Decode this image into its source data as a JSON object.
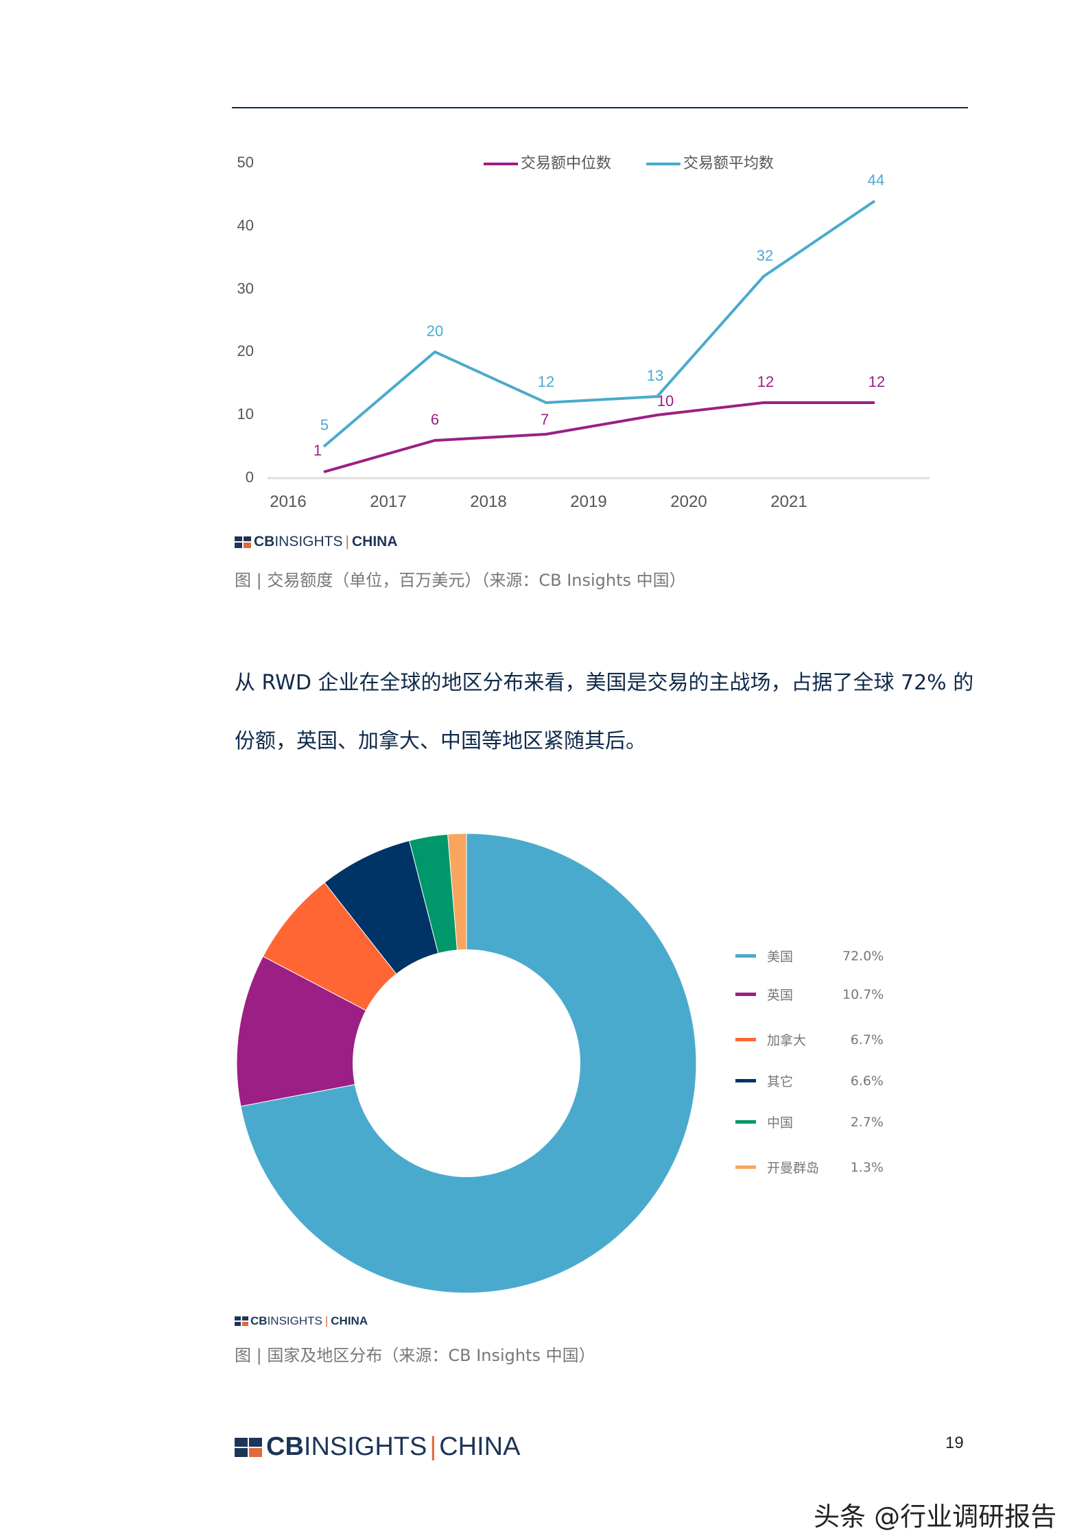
{
  "header": {
    "rule_color": "#0f2a4a"
  },
  "chart_data": [
    {
      "type": "line",
      "title": "",
      "x": [
        "2016",
        "2017",
        "2018",
        "2019",
        "2020",
        "2021"
      ],
      "x_ticks": [
        "2016",
        "2017",
        "2018",
        "2019",
        "2020",
        "2021"
      ],
      "y_ticks": [
        "0",
        "10",
        "20",
        "30",
        "40",
        "50"
      ],
      "ylim": [
        0,
        50
      ],
      "xlabel": "",
      "ylabel": "",
      "grid": false,
      "legend_position": "top",
      "series": [
        {
          "name": "交易额中位数",
          "color": "#9b1f84",
          "values": [
            1,
            6,
            7,
            10,
            12,
            12
          ],
          "labels": [
            "1",
            "6",
            "7",
            "10",
            "12",
            "12"
          ]
        },
        {
          "name": "交易额平均数",
          "color": "#4aaacd",
          "values": [
            5,
            20,
            12,
            13,
            32,
            44
          ],
          "labels": [
            "5",
            "20",
            "12",
            "13",
            "32",
            "44"
          ]
        }
      ]
    },
    {
      "type": "pie",
      "subtype": "donut",
      "title": "",
      "categories": [
        "美国",
        "英国",
        "加拿大",
        "其它",
        "中国",
        "开曼群岛"
      ],
      "values": [
        72.0,
        10.7,
        6.7,
        6.6,
        2.7,
        1.3
      ],
      "labels": [
        "72.0%",
        "10.7%",
        "6.7%",
        "6.6%",
        "2.7%",
        "1.3%"
      ],
      "colors": [
        "#4aaacd",
        "#9b1f84",
        "#ff6633",
        "#003366",
        "#00976a",
        "#f9a55e"
      ],
      "legend_position": "right"
    }
  ],
  "chart1": {
    "legend": [
      "交易额中位数",
      "交易额平均数"
    ],
    "logo": {
      "cb": "CB",
      "insights": "INSIGHTS",
      "sep": "|",
      "china": "CHINA"
    },
    "caption": "图 | 交易额度（单位，百万美元）（来源：CB Insights 中国）"
  },
  "paragraph": {
    "line1": "从 RWD 企业在全球的地区分布来看，美国是交易的主战场，占据了全球 72% 的",
    "line2": "份额，英国、加拿大、中国等地区紧随其后。"
  },
  "chart2": {
    "legend": [
      {
        "name": "美国",
        "pct": "72.0%",
        "color": "#4aaacd"
      },
      {
        "name": "英国",
        "pct": "10.7%",
        "color": "#9b1f84"
      },
      {
        "name": "加拿大",
        "pct": "6.7%",
        "color": "#ff6633"
      },
      {
        "name": "其它",
        "pct": "6.6%",
        "color": "#003366"
      },
      {
        "name": "中国",
        "pct": "2.7%",
        "color": "#00976a"
      },
      {
        "name": "开曼群岛",
        "pct": "1.3%",
        "color": "#f9a55e"
      }
    ],
    "logo": {
      "cb": "CB",
      "insights": "INSIGHTS",
      "sep": "|",
      "china": "CHINA"
    },
    "caption": "图 | 国家及地区分布（来源：CB Insights 中国）"
  },
  "footer": {
    "logo": {
      "cb": "CB",
      "insights": "INSIGHTS",
      "sep": "|",
      "china": "CHINA"
    },
    "page_number": "19",
    "watermark": "头条 @行业调研报告"
  }
}
